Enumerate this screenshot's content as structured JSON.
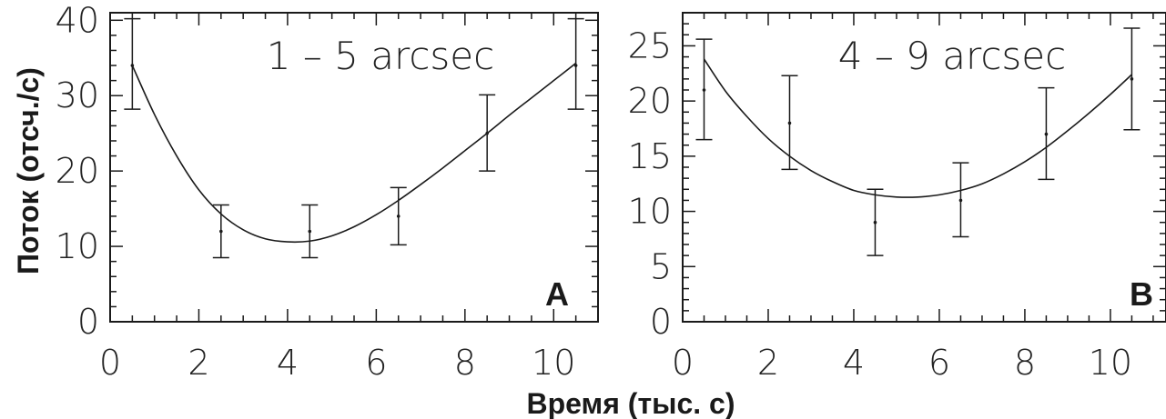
{
  "figure": {
    "ylabel": "Поток (отсч./с)",
    "xlabel": "Время (тыс. с)"
  },
  "chart_data": [
    {
      "type": "scatter",
      "panel_letter": "A",
      "title": "1 –  5 arcsec",
      "xlim": [
        0,
        11
      ],
      "ylim": [
        0,
        41
      ],
      "xticks": [
        0,
        2,
        4,
        6,
        8,
        10
      ],
      "yticks": [
        0,
        10,
        20,
        30,
        40
      ],
      "x": [
        0.5,
        2.5,
        4.5,
        6.5,
        8.5,
        10.5
      ],
      "y": [
        34,
        12,
        12,
        14,
        25,
        34
      ],
      "yerr_low": [
        28.2,
        8.5,
        8.5,
        10.2,
        20,
        28.2
      ],
      "yerr_high": [
        40.2,
        15.5,
        15.5,
        17.8,
        30.1,
        40.2
      ],
      "fit_curve": {
        "x": [
          0.5,
          1.0,
          1.5,
          2.0,
          2.5,
          3.0,
          3.5,
          4.0,
          4.5,
          5.0,
          5.5,
          6.0,
          6.5,
          7.0,
          7.5,
          8.0,
          8.5,
          9.0,
          9.5,
          10.0,
          10.5
        ],
        "y": [
          34,
          27.5,
          22,
          17.5,
          14.3,
          12.2,
          11.0,
          10.6,
          10.7,
          11.4,
          12.6,
          14.2,
          16.1,
          18.2,
          20.4,
          22.7,
          25.0,
          27.4,
          29.7,
          32.0,
          34.3
        ]
      }
    },
    {
      "type": "scatter",
      "panel_letter": "B",
      "title": "4 –  9 arcsec",
      "xlim": [
        0,
        11.3
      ],
      "ylim": [
        0,
        28
      ],
      "xticks": [
        0,
        2,
        4,
        6,
        8,
        10
      ],
      "yticks": [
        0,
        5,
        10,
        15,
        20,
        25
      ],
      "x": [
        0.5,
        2.5,
        4.5,
        6.5,
        8.5,
        10.5
      ],
      "y": [
        21,
        18,
        9,
        11,
        17,
        22
      ],
      "yerr_low": [
        16.5,
        13.8,
        6,
        7.7,
        12.9,
        17.4
      ],
      "yerr_high": [
        25.6,
        22.3,
        12,
        14.4,
        21.2,
        26.6
      ],
      "fit_curve": {
        "x": [
          0.5,
          1.0,
          1.5,
          2.0,
          2.5,
          3.0,
          3.5,
          4.0,
          4.5,
          5.0,
          5.5,
          6.0,
          6.5,
          7.0,
          7.5,
          8.0,
          8.5,
          9.0,
          9.5,
          10.0,
          10.5
        ],
        "y": [
          23.8,
          20.9,
          18.6,
          16.6,
          15.0,
          13.7,
          12.7,
          11.9,
          11.5,
          11.3,
          11.3,
          11.5,
          11.9,
          12.5,
          13.4,
          14.5,
          15.8,
          17.3,
          18.9,
          20.6,
          22.4
        ]
      }
    }
  ]
}
